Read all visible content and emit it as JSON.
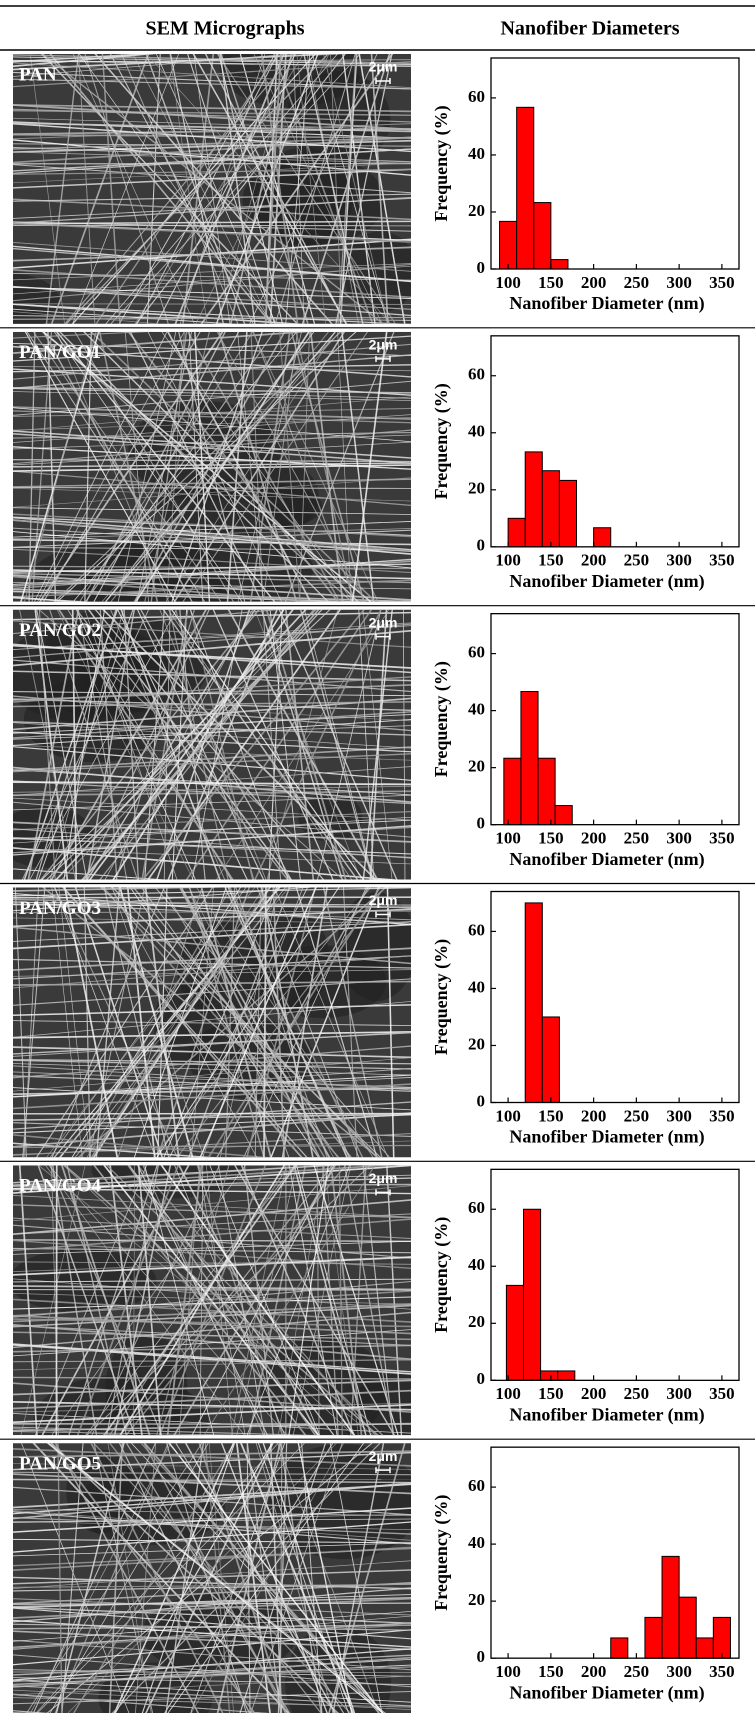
{
  "header": {
    "left": "SEM Micrographs",
    "right": "Nanofiber Diameters"
  },
  "panels": [
    {
      "label": "PAN",
      "scale_bar": "2μm"
    },
    {
      "label": "PAN/GO1",
      "scale_bar": "2μm"
    },
    {
      "label": "PAN/GO2",
      "scale_bar": "2μm"
    },
    {
      "label": "PAN/GO3",
      "scale_bar": "2μm"
    },
    {
      "label": "PAN/GO4",
      "scale_bar": "2μm"
    },
    {
      "label": "PAN/GO5",
      "scale_bar": "2μm"
    }
  ],
  "chart_data": [
    {
      "type": "histogram",
      "bins": [
        90,
        110,
        130,
        150,
        170
      ],
      "values": [
        16.7,
        56.7,
        23.3,
        3.3
      ],
      "color": "#ff0000",
      "xlabel": "Nanofiber Diameter (nm)",
      "ylabel": "Frequency (%)",
      "xlim": [
        80,
        370
      ],
      "ylim": [
        0,
        74
      ],
      "xticks": [
        100,
        150,
        200,
        250,
        300,
        350
      ],
      "yticks": [
        0,
        20,
        40,
        60
      ]
    },
    {
      "type": "histogram",
      "bins": [
        100,
        120,
        140,
        160,
        180,
        200,
        220
      ],
      "values": [
        10,
        33.3,
        26.7,
        23.3,
        0,
        6.7
      ],
      "color": "#ff0000",
      "xlabel": "Nanofiber Diameter (nm)",
      "ylabel": "Frequency (%)",
      "xlim": [
        80,
        370
      ],
      "ylim": [
        0,
        74
      ],
      "xticks": [
        100,
        150,
        200,
        250,
        300,
        350
      ],
      "yticks": [
        0,
        20,
        40,
        60
      ]
    },
    {
      "type": "histogram",
      "bins": [
        95,
        115,
        135,
        155,
        175
      ],
      "values": [
        23.3,
        46.7,
        23.3,
        6.7
      ],
      "color": "#ff0000",
      "xlabel": "Nanofiber Diameter (nm)",
      "ylabel": "Frequency (%)",
      "xlim": [
        80,
        370
      ],
      "ylim": [
        0,
        74
      ],
      "xticks": [
        100,
        150,
        200,
        250,
        300,
        350
      ],
      "yticks": [
        0,
        20,
        40,
        60
      ]
    },
    {
      "type": "histogram",
      "bins": [
        120,
        140,
        160
      ],
      "values": [
        70,
        30
      ],
      "color": "#ff0000",
      "xlabel": "Nanofiber Diameter (nm)",
      "ylabel": "Frequency (%)",
      "xlim": [
        80,
        370
      ],
      "ylim": [
        0,
        74
      ],
      "xticks": [
        100,
        150,
        200,
        250,
        300,
        350
      ],
      "yticks": [
        0,
        20,
        40,
        60
      ]
    },
    {
      "type": "histogram",
      "bins": [
        98,
        118,
        138,
        158,
        178
      ],
      "values": [
        33.3,
        60,
        3.3,
        3.3
      ],
      "color": "#ff0000",
      "xlabel": "Nanofiber Diameter (nm)",
      "ylabel": "Frequency (%)",
      "xlim": [
        80,
        370
      ],
      "ylim": [
        0,
        74
      ],
      "xticks": [
        100,
        150,
        200,
        250,
        300,
        350
      ],
      "yticks": [
        0,
        20,
        40,
        60
      ]
    },
    {
      "type": "histogram",
      "bins": [
        220,
        240,
        260,
        280,
        300,
        320,
        340,
        360
      ],
      "values": [
        7.1,
        0,
        14.3,
        35.7,
        21.4,
        7.1,
        14.3
      ],
      "color": "#ff0000",
      "xlabel": "Nanofiber Diameter (nm)",
      "ylabel": "Frequency (%)",
      "xlim": [
        80,
        370
      ],
      "ylim": [
        0,
        74
      ],
      "xticks": [
        100,
        150,
        200,
        250,
        300,
        350
      ],
      "yticks": [
        0,
        20,
        40,
        60
      ]
    }
  ]
}
